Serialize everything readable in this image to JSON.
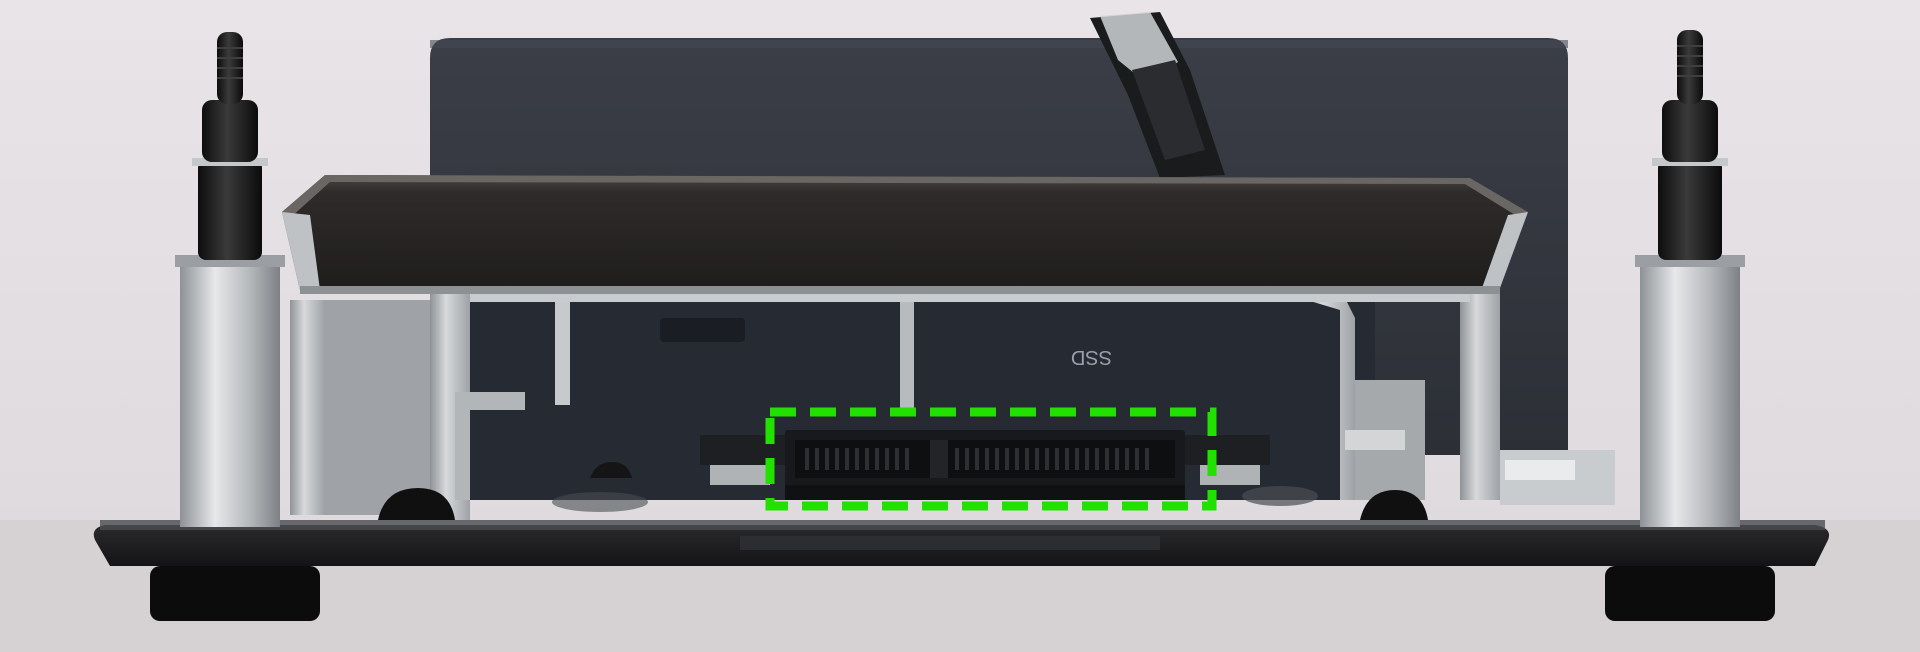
{
  "photo": {
    "subject": "sata-connector-on-drive-bracket",
    "printed_mark": "SSD",
    "highlight": {
      "target": "sata-connector",
      "style": "dashed",
      "color": "#22e000"
    },
    "colors": {
      "background": "#e4e0e4",
      "enclosure": "#34373f",
      "bracket_metal": "#b9bcbf",
      "top_plate": "#2b2928",
      "base_plate": "#1b1b1d",
      "standoff": "#c4c7ca",
      "screw": "#161616"
    }
  }
}
